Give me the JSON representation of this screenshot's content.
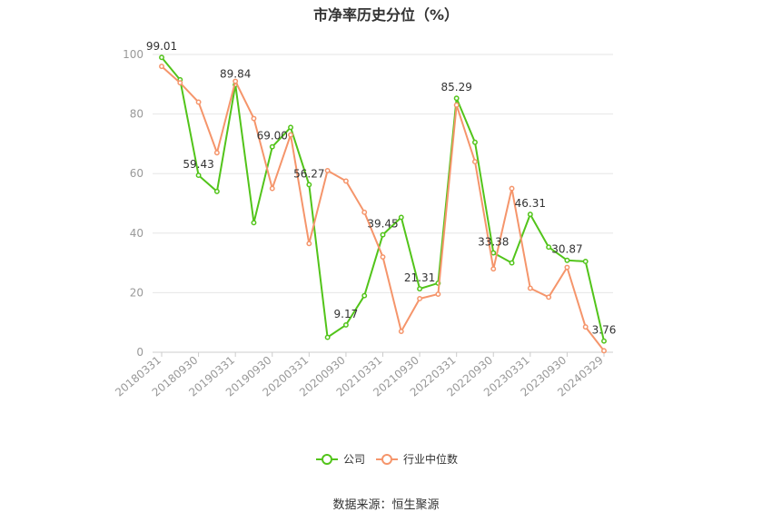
{
  "title": "市净率历史分位（%）",
  "source": "数据来源：恒生聚源",
  "colors": {
    "company": "#52c41a",
    "industry": "#f5956b",
    "grid": "#e6e6e6",
    "axis": "#999999"
  },
  "chart_data": {
    "type": "line",
    "title": "市净率历史分位（%）",
    "xlabel": "",
    "ylabel": "",
    "ylim": [
      0,
      100
    ],
    "yticks": [
      0,
      20,
      40,
      60,
      80,
      100
    ],
    "grid": true,
    "legend_position": "bottom",
    "x": [
      "20180331",
      "20180630",
      "20180930",
      "20181231",
      "20190331",
      "20190630",
      "20190930",
      "20191231",
      "20200331",
      "20200630",
      "20200930",
      "20201231",
      "20210331",
      "20210630",
      "20210930",
      "20211231",
      "20220331",
      "20220630",
      "20220930",
      "20221231",
      "20230331",
      "20230630",
      "20230930",
      "20231231",
      "20240329"
    ],
    "xtick_labels": [
      "20180331",
      "20180930",
      "20190331",
      "20190930",
      "20200331",
      "20200930",
      "20210331",
      "20210930",
      "20220331",
      "20220930",
      "20230331",
      "20230930",
      "20240329"
    ],
    "series": [
      {
        "name": "公司",
        "color": "#52c41a",
        "values": [
          99.01,
          91.5,
          59.43,
          54.0,
          89.84,
          43.5,
          69.0,
          75.5,
          56.27,
          5.0,
          9.17,
          19.0,
          39.45,
          45.3,
          21.31,
          23.2,
          85.29,
          70.5,
          33.38,
          30.0,
          46.31,
          35.3,
          30.87,
          30.5,
          3.76
        ]
      },
      {
        "name": "行业中位数",
        "color": "#f5956b",
        "values": [
          96.0,
          90.5,
          84.0,
          67.0,
          91.0,
          78.5,
          55.0,
          73.0,
          36.5,
          61.0,
          57.5,
          47.0,
          32.0,
          7.0,
          18.0,
          19.5,
          83.0,
          64.0,
          28.0,
          55.0,
          21.5,
          18.5,
          28.5,
          8.5,
          0.5
        ]
      }
    ],
    "data_labels": [
      {
        "index": 0,
        "text": "99.01"
      },
      {
        "index": 2,
        "text": "59.43"
      },
      {
        "index": 4,
        "text": "89.84"
      },
      {
        "index": 6,
        "text": "69.00"
      },
      {
        "index": 8,
        "text": "56.27"
      },
      {
        "index": 10,
        "text": "9.17"
      },
      {
        "index": 12,
        "text": "39.45"
      },
      {
        "index": 14,
        "text": "21.31"
      },
      {
        "index": 16,
        "text": "85.29"
      },
      {
        "index": 18,
        "text": "33.38"
      },
      {
        "index": 20,
        "text": "46.31"
      },
      {
        "index": 22,
        "text": "30.87"
      },
      {
        "index": 24,
        "text": "3.76"
      }
    ]
  }
}
